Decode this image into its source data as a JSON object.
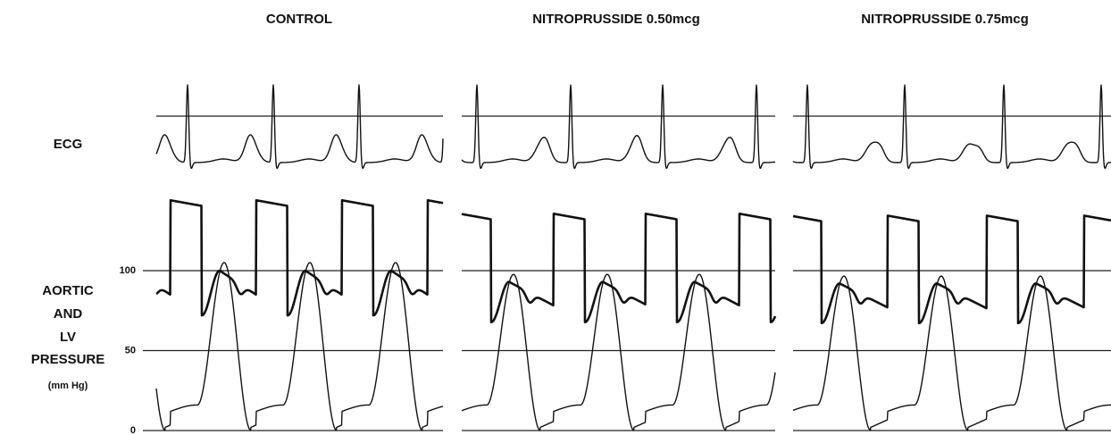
{
  "panels": [
    {
      "title": "CONTROL"
    },
    {
      "title": "NITROPRUSSIDE 0.50mcg"
    },
    {
      "title": "NITROPRUSSIDE 0.75mcg"
    }
  ],
  "rows": {
    "ecg": "ECG",
    "pressure": [
      "AORTIC",
      "AND",
      "LV",
      "PRESSURE"
    ],
    "unit": "(mm Hg)"
  },
  "pressure_axis": {
    "yticks": [
      0,
      50,
      100
    ]
  }
}
